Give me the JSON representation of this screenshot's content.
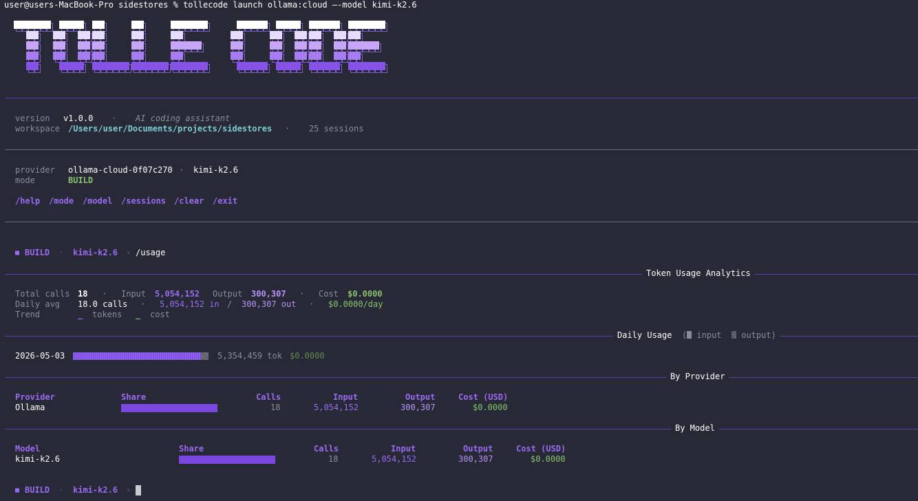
{
  "prompt_line": "user@users-MacBook-Pro sidestores % tollecode launch ollama:cloud —-model kimi-k2.6",
  "banner": {
    "logo_text": "TOLLE CODE"
  },
  "info": {
    "version_label": "version",
    "version_value": "v1.0.0",
    "tagline": "AI coding assistant",
    "workspace_label": "workspace",
    "workspace_path": "/Users/user/Documents/projects/sidestores",
    "sessions": "25 sessions",
    "provider_label": "provider",
    "provider_value": "ollama-cloud-0f07c270",
    "model_value": "kimi-k2.6",
    "mode_label": "mode",
    "mode_value": "BUILD"
  },
  "commands": [
    "/help",
    "/mode",
    "/model",
    "/sessions",
    "/clear",
    "/exit"
  ],
  "status1": {
    "mode": "BUILD",
    "model": "kimi-k2.6",
    "command": "/usage"
  },
  "status2": {
    "mode": "BUILD",
    "model": "kimi-k2.6"
  },
  "usage": {
    "title": "Token Usage Analytics",
    "total_calls_label": "Total calls",
    "total_calls": "18",
    "input_label": "Input",
    "input": "5,054,152",
    "output_label": "Output",
    "output": "300,307",
    "cost_label": "Cost",
    "cost": "$0.0000",
    "daily_avg_label": "Daily avg",
    "daily_calls": "18.0 calls",
    "daily_in": "5,054,152 in",
    "daily_out": "300,307 out",
    "daily_cost": "$0.0000/day",
    "trend_label": "Trend",
    "trend_tokens": "tokens",
    "trend_cost": "cost"
  },
  "daily": {
    "title": "Daily Usage",
    "legend_input": "input",
    "legend_output": "output)",
    "legend_open": "(",
    "date": "2026-05-03",
    "tokens": "5,354,459 tok",
    "cost": "$0.0000",
    "input_fraction": 0.944,
    "output_fraction": 0.056
  },
  "by_provider": {
    "title": "By Provider",
    "headers": [
      "Provider",
      "Share",
      "Calls",
      "Input",
      "Output",
      "Cost (USD)"
    ],
    "row": {
      "name": "Ollama",
      "share": 1.0,
      "calls": "18",
      "input": "5,054,152",
      "output": "300,307",
      "cost": "$0.0000"
    }
  },
  "by_model": {
    "title": "By Model",
    "headers": [
      "Model",
      "Share",
      "Calls",
      "Input",
      "Output",
      "Cost (USD)"
    ],
    "row": {
      "name": "kimi-k2.6",
      "share": 1.0,
      "calls": "18",
      "input": "5,054,152",
      "output": "300,307",
      "cost": "$0.0000"
    }
  },
  "colors": {
    "background": "#272a36",
    "accent": "#9b6af2",
    "green": "#88c26d",
    "teal": "#7fcbd6"
  },
  "symbols": {
    "sep": "·",
    "chev": "›",
    "slash": "/",
    "square": "■",
    "trend_token_mark": "_",
    "trend_cost_mark": "_"
  }
}
